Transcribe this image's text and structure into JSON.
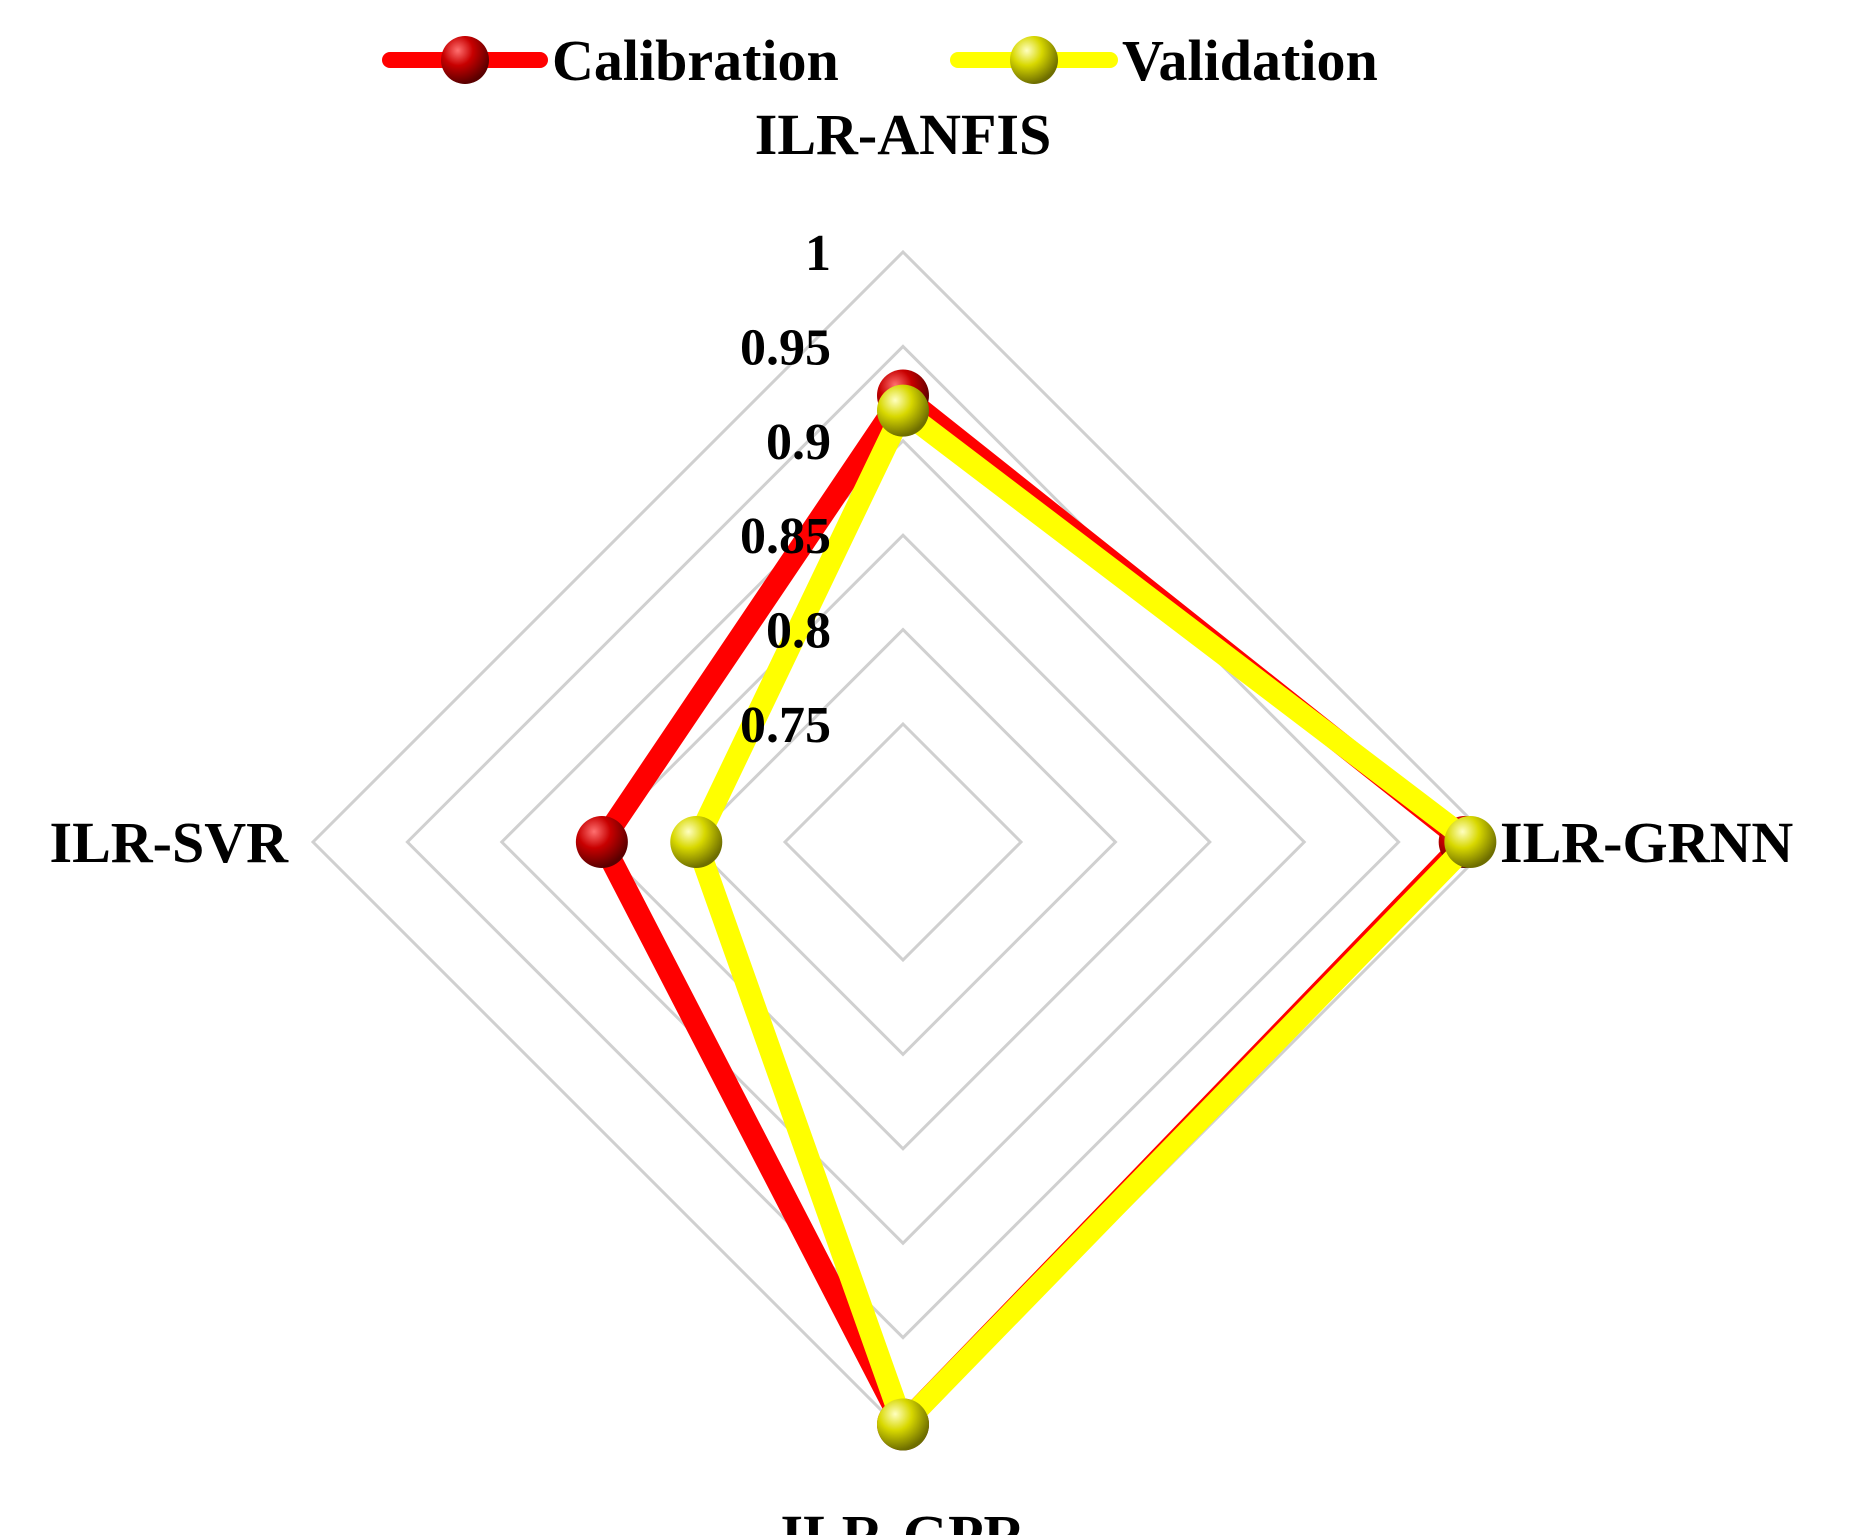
{
  "chart_data": {
    "type": "radar",
    "axes": [
      "ILR-ANFIS",
      "ILR-GRNN",
      "ILR-GPR",
      "ILR-SVR"
    ],
    "ticks": [
      "0.75",
      "0.8",
      "0.85",
      "0.9",
      "0.95",
      "1"
    ],
    "rlim": [
      0.75,
      1
    ],
    "grid": true,
    "legend_position": "top",
    "series": [
      {
        "name": "Calibration",
        "color": "#ff0000",
        "marker_color": "#b80000",
        "values": [
          0.924,
          0.985,
          0.996,
          0.847
        ]
      },
      {
        "name": "Validation",
        "color": "#ffff00",
        "marker_color": "#c9c900",
        "values": [
          0.916,
          0.988,
          0.996,
          0.797
        ]
      }
    ]
  }
}
